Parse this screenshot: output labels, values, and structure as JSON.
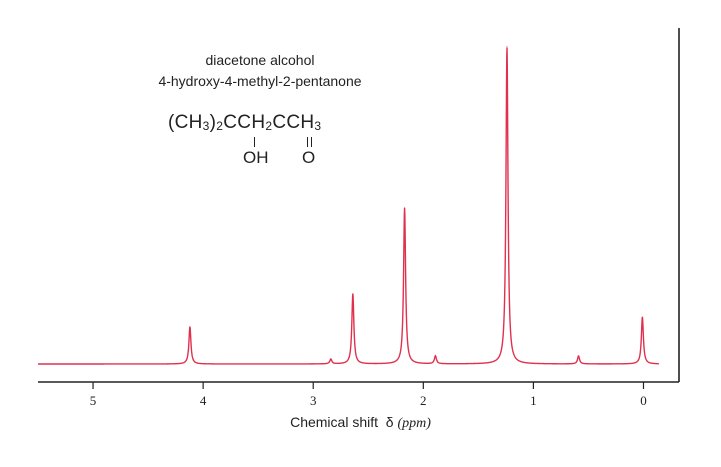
{
  "chart_data": {
    "type": "line",
    "compound_name": "diacetone alcohol",
    "iupac_name": "4-hydroxy-4-methyl-2-pentanone",
    "formula_main": [
      "(CH",
      "3",
      ")",
      "2",
      "CCH",
      "2",
      "CCH",
      "3"
    ],
    "formula_oh": "OH",
    "formula_o": "O",
    "xlabel_text": "Chemical shift",
    "xlabel_symbol": "δ",
    "xlabel_unit": "(ppm)",
    "xlim": [
      5.5,
      -0.15
    ],
    "x_reversed": true,
    "x_ticks": [
      "5",
      "4",
      "3",
      "2",
      "1",
      "0"
    ],
    "x_tick_values": [
      5,
      4,
      3,
      2,
      1,
      0
    ],
    "ylim": [
      0,
      1.0
    ],
    "y_ticks_shown": false,
    "line_color": "#e0304e",
    "peaks": [
      {
        "shift": 4.12,
        "height": 0.117
      },
      {
        "shift": 2.84,
        "height": 0.015
      },
      {
        "shift": 2.64,
        "height": 0.221
      },
      {
        "shift": 2.17,
        "height": 0.492
      },
      {
        "shift": 1.89,
        "height": 0.025
      },
      {
        "shift": 1.24,
        "height": 1.0
      },
      {
        "shift": 0.59,
        "height": 0.025
      },
      {
        "shift": 0.01,
        "height": 0.148
      }
    ],
    "grid": false,
    "legend": "none"
  }
}
